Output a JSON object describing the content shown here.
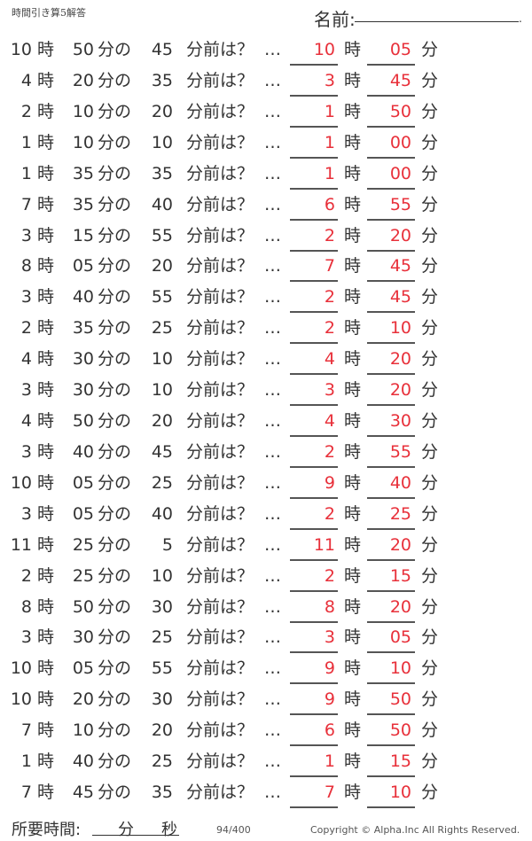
{
  "header": {
    "title": "時間引き算5解答",
    "name_label": "名前:",
    "name_end": "."
  },
  "labels": {
    "hour": "時",
    "min_no": "分の",
    "before": "分前は？",
    "dots": "…",
    "min": "分"
  },
  "colors": {
    "answer": "#e8303a"
  },
  "problems": [
    {
      "h": "10",
      "m": "50",
      "d": "45",
      "ah": "10",
      "am": "05"
    },
    {
      "h": "4",
      "m": "20",
      "d": "35",
      "ah": "3",
      "am": "45"
    },
    {
      "h": "2",
      "m": "10",
      "d": "20",
      "ah": "1",
      "am": "50"
    },
    {
      "h": "1",
      "m": "10",
      "d": "10",
      "ah": "1",
      "am": "00"
    },
    {
      "h": "1",
      "m": "35",
      "d": "35",
      "ah": "1",
      "am": "00"
    },
    {
      "h": "7",
      "m": "35",
      "d": "40",
      "ah": "6",
      "am": "55"
    },
    {
      "h": "3",
      "m": "15",
      "d": "55",
      "ah": "2",
      "am": "20"
    },
    {
      "h": "8",
      "m": "05",
      "d": "20",
      "ah": "7",
      "am": "45"
    },
    {
      "h": "3",
      "m": "40",
      "d": "55",
      "ah": "2",
      "am": "45"
    },
    {
      "h": "2",
      "m": "35",
      "d": "25",
      "ah": "2",
      "am": "10"
    },
    {
      "h": "4",
      "m": "30",
      "d": "10",
      "ah": "4",
      "am": "20"
    },
    {
      "h": "3",
      "m": "30",
      "d": "10",
      "ah": "3",
      "am": "20"
    },
    {
      "h": "4",
      "m": "50",
      "d": "20",
      "ah": "4",
      "am": "30"
    },
    {
      "h": "3",
      "m": "40",
      "d": "45",
      "ah": "2",
      "am": "55"
    },
    {
      "h": "10",
      "m": "05",
      "d": "25",
      "ah": "9",
      "am": "40"
    },
    {
      "h": "3",
      "m": "05",
      "d": "40",
      "ah": "2",
      "am": "25"
    },
    {
      "h": "11",
      "m": "25",
      "d": "5",
      "ah": "11",
      "am": "20"
    },
    {
      "h": "2",
      "m": "25",
      "d": "10",
      "ah": "2",
      "am": "15"
    },
    {
      "h": "8",
      "m": "50",
      "d": "30",
      "ah": "8",
      "am": "20"
    },
    {
      "h": "3",
      "m": "30",
      "d": "25",
      "ah": "3",
      "am": "05"
    },
    {
      "h": "10",
      "m": "05",
      "d": "55",
      "ah": "9",
      "am": "10"
    },
    {
      "h": "10",
      "m": "20",
      "d": "30",
      "ah": "9",
      "am": "50"
    },
    {
      "h": "7",
      "m": "10",
      "d": "20",
      "ah": "6",
      "am": "50"
    },
    {
      "h": "1",
      "m": "40",
      "d": "25",
      "ah": "1",
      "am": "15"
    },
    {
      "h": "7",
      "m": "45",
      "d": "35",
      "ah": "7",
      "am": "10"
    }
  ],
  "footer": {
    "time_label": "所要時間:",
    "min": "分",
    "sec": "秒",
    "page": "94/400",
    "copyright": "Copyright ©  Alpha.Inc All Rights Reserved."
  }
}
